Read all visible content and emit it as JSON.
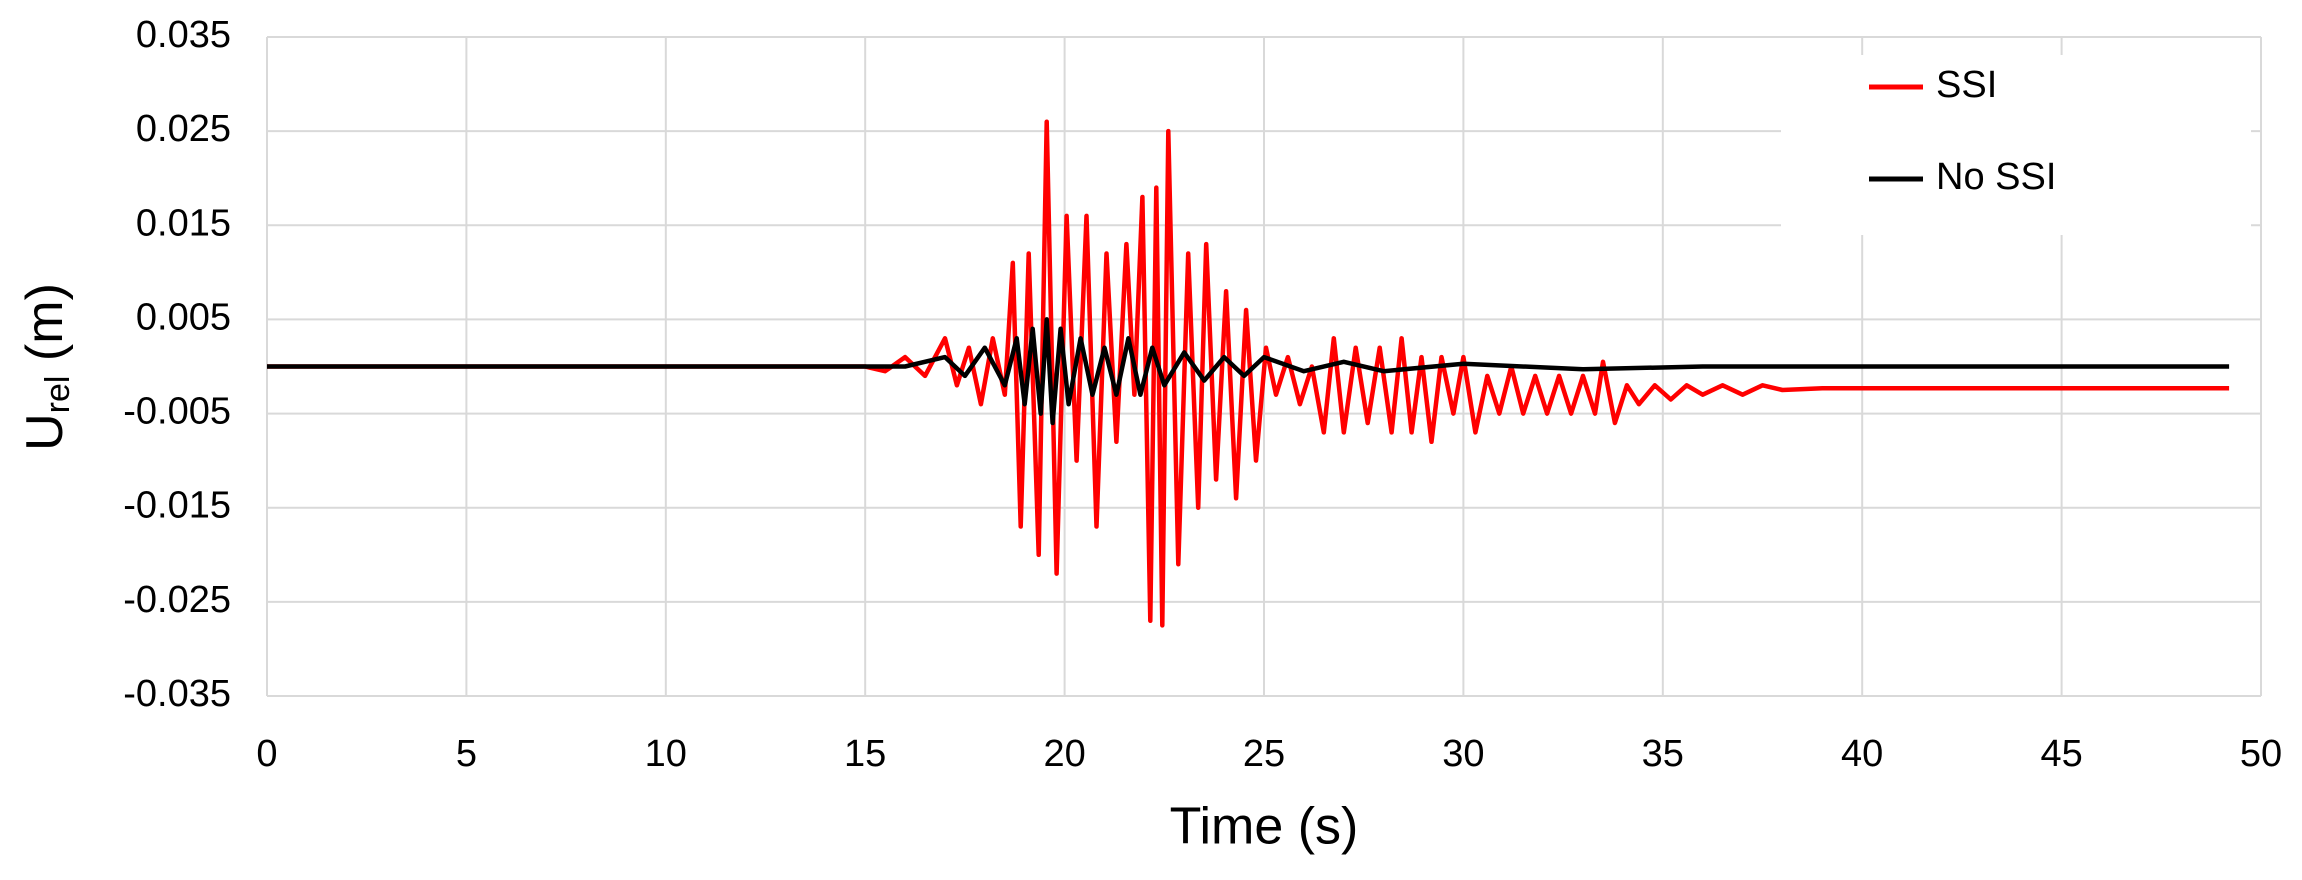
{
  "chart_data": {
    "type": "line",
    "x_label": "Time (s)",
    "y_label": {
      "main": "U",
      "sub": "rel",
      "suffix": " (m)"
    },
    "xlim": [
      0,
      50
    ],
    "xticks": [
      0,
      5,
      10,
      15,
      20,
      25,
      30,
      35,
      40,
      45,
      50
    ],
    "ylim": [
      -0.035,
      0.035
    ],
    "yticks": [
      -0.035,
      -0.025,
      -0.015,
      -0.005,
      0.005,
      0.015,
      0.025,
      0.035
    ],
    "grid": true,
    "legend": "upper right",
    "series": [
      {
        "name": "SSI",
        "color": "#ff0000",
        "x": [
          0,
          15,
          15.5,
          16,
          16.5,
          17,
          17.3,
          17.6,
          17.9,
          18.2,
          18.5,
          18.7,
          18.9,
          19.1,
          19.35,
          19.55,
          19.8,
          20.05,
          20.3,
          20.55,
          20.8,
          21.05,
          21.3,
          21.55,
          21.75,
          21.95,
          22.15,
          22.3,
          22.45,
          22.6,
          22.85,
          23.1,
          23.35,
          23.55,
          23.8,
          24.05,
          24.3,
          24.55,
          24.8,
          25.05,
          25.3,
          25.6,
          25.9,
          26.2,
          26.5,
          26.75,
          27.0,
          27.3,
          27.6,
          27.9,
          28.2,
          28.45,
          28.7,
          28.95,
          29.2,
          29.45,
          29.75,
          30.0,
          30.3,
          30.6,
          30.9,
          31.2,
          31.5,
          31.8,
          32.1,
          32.4,
          32.7,
          33.0,
          33.3,
          33.5,
          33.8,
          34.1,
          34.4,
          34.8,
          35.2,
          35.6,
          36,
          36.5,
          37,
          37.5,
          38,
          39,
          49.2
        ],
        "values": [
          0,
          0,
          -0.0005,
          0.001,
          -0.001,
          0.003,
          -0.002,
          0.002,
          -0.004,
          0.003,
          -0.003,
          0.011,
          -0.017,
          0.012,
          -0.02,
          0.026,
          -0.022,
          0.016,
          -0.01,
          0.016,
          -0.017,
          0.012,
          -0.008,
          0.013,
          -0.003,
          0.018,
          -0.027,
          0.019,
          -0.0275,
          0.025,
          -0.021,
          0.012,
          -0.015,
          0.013,
          -0.012,
          0.008,
          -0.014,
          0.006,
          -0.01,
          0.002,
          -0.003,
          0.001,
          -0.004,
          0,
          -0.007,
          0.003,
          -0.007,
          0.002,
          -0.006,
          0.002,
          -0.007,
          0.003,
          -0.007,
          0.001,
          -0.008,
          0.001,
          -0.005,
          0.001,
          -0.007,
          -0.001,
          -0.005,
          0,
          -0.005,
          -0.001,
          -0.005,
          -0.001,
          -0.005,
          -0.001,
          -0.005,
          0.0005,
          -0.006,
          -0.002,
          -0.004,
          -0.002,
          -0.0035,
          -0.002,
          -0.003,
          -0.002,
          -0.003,
          -0.002,
          -0.0025,
          -0.0023,
          -0.0023
        ]
      },
      {
        "name": "No SSI",
        "color": "#000000",
        "x": [
          0,
          16,
          17,
          17.5,
          18,
          18.5,
          18.8,
          19,
          19.2,
          19.4,
          19.55,
          19.7,
          19.9,
          20.1,
          20.4,
          20.7,
          21,
          21.3,
          21.6,
          21.9,
          22.2,
          22.5,
          23,
          23.5,
          24,
          24.5,
          25,
          26,
          27,
          28,
          30,
          33,
          36,
          49.2
        ],
        "values": [
          0,
          0,
          0.001,
          -0.001,
          0.002,
          -0.002,
          0.003,
          -0.004,
          0.004,
          -0.005,
          0.005,
          -0.006,
          0.004,
          -0.004,
          0.003,
          -0.003,
          0.002,
          -0.003,
          0.003,
          -0.003,
          0.002,
          -0.002,
          0.0015,
          -0.0015,
          0.001,
          -0.001,
          0.001,
          -0.0005,
          0.0005,
          -0.0005,
          0.0003,
          -0.0003,
          0,
          0
        ]
      }
    ]
  }
}
